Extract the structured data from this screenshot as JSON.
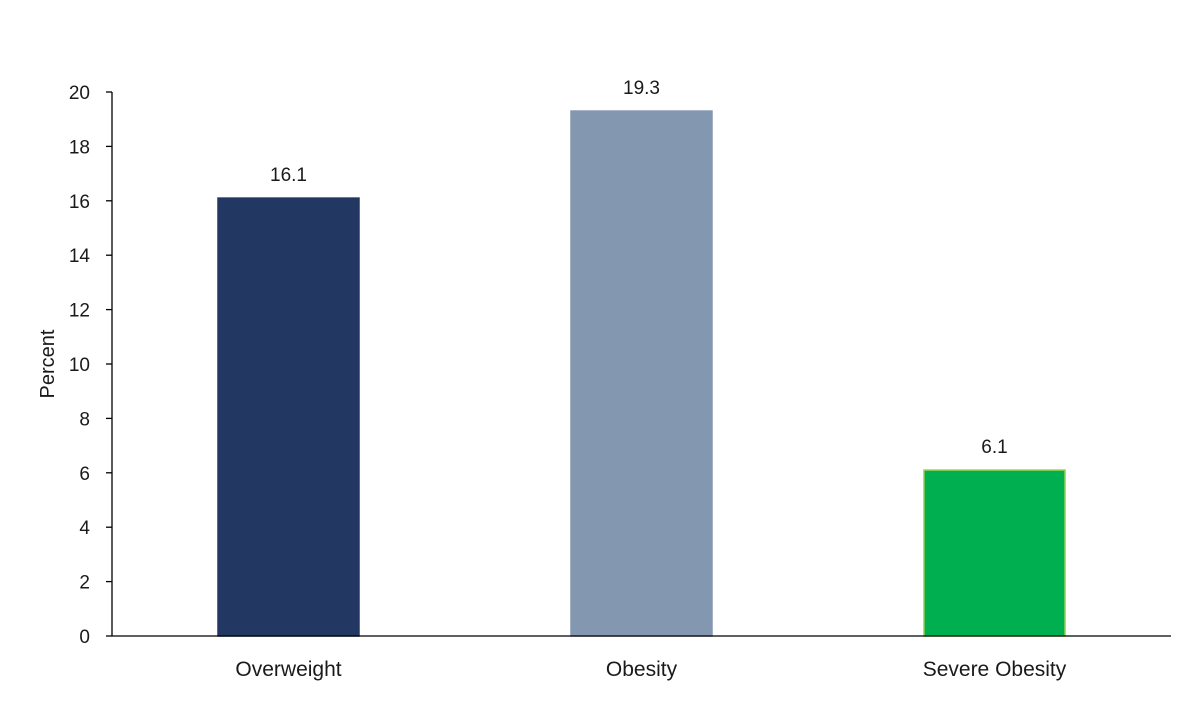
{
  "chart_data": {
    "type": "bar",
    "title": "",
    "xlabel": "",
    "ylabel": "Percent",
    "ylim": [
      0,
      20
    ],
    "yticks": [
      0,
      2,
      4,
      6,
      8,
      10,
      12,
      14,
      16,
      18,
      20
    ],
    "grid": false,
    "legend": "none",
    "categories": [
      "Overweight",
      "Obesity",
      "Severe Obesity"
    ],
    "values": [
      16.1,
      19.3,
      6.1
    ],
    "value_labels": [
      "16.1",
      "19.3",
      "6.1"
    ],
    "colors": [
      "#223862",
      "#8497b0",
      "#00b050"
    ],
    "border_colors": [
      "#223862",
      "#8497b0",
      "#92d050"
    ]
  }
}
